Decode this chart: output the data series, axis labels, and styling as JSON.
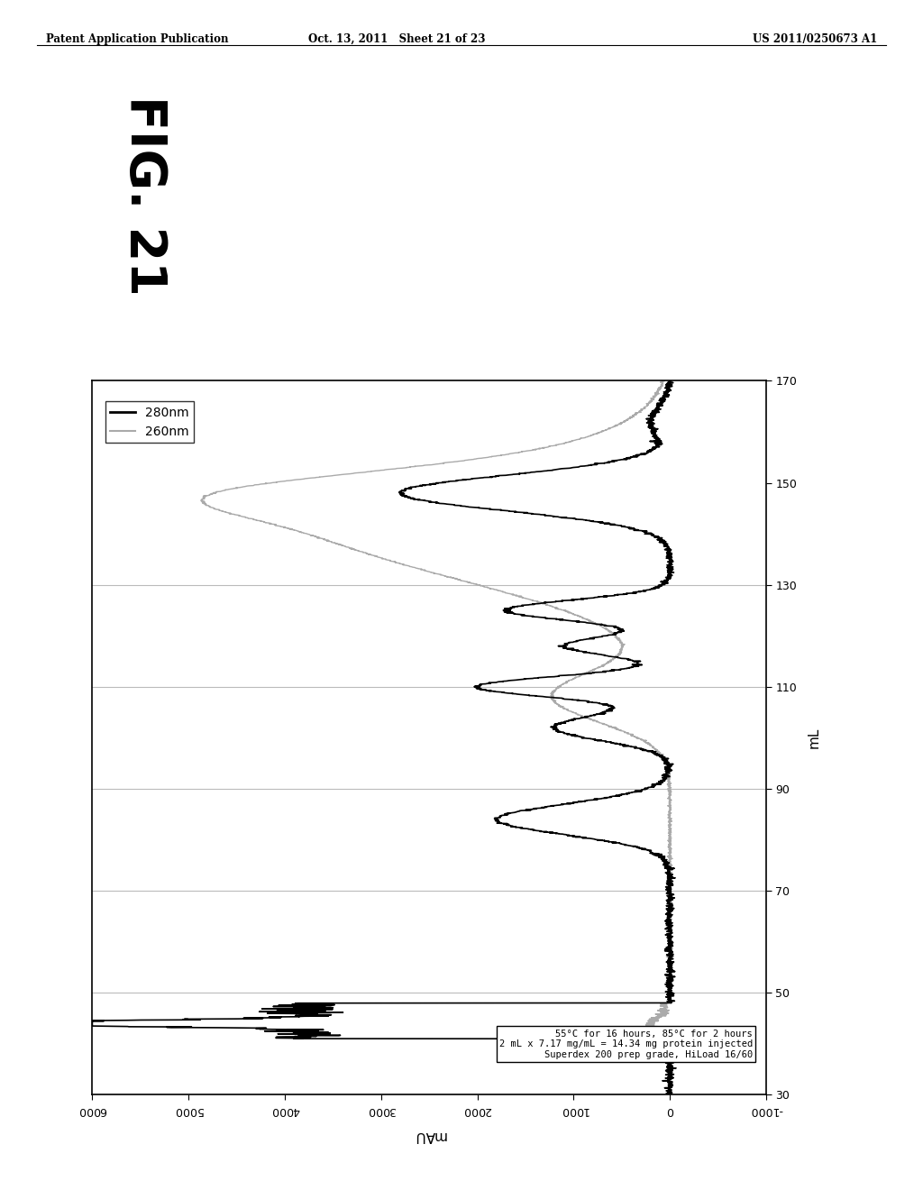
{
  "header_left": "Patent Application Publication",
  "header_center": "Oct. 13, 2011   Sheet 21 of 23",
  "header_right": "US 2011/0250673 A1",
  "fig_label": "FIG. 21",
  "xlabel": "mL",
  "ylabel": "mAU",
  "xlim": [
    30,
    170
  ],
  "ylim": [
    -1000,
    6000
  ],
  "xticks": [
    30,
    50,
    70,
    90,
    110,
    130,
    150,
    170
  ],
  "yticks": [
    -1000,
    0,
    1000,
    2000,
    3000,
    4000,
    5000,
    6000
  ],
  "legend_labels": [
    "280nm",
    "260nm"
  ],
  "legend_colors": [
    "#000000",
    "#aaaaaa"
  ],
  "annotation_lines": [
    "55°C for 16 hours, 85°C for 2 hours",
    "2 mL x 7.17 mg/mL = 14.34 mg protein injected",
    "Superdex 200 prep grade, HiLoad 16/60"
  ],
  "horizontal_grid_y": [
    50,
    70,
    90,
    110,
    130
  ],
  "background_color": "#ffffff",
  "plot_bg_color": "#ffffff"
}
